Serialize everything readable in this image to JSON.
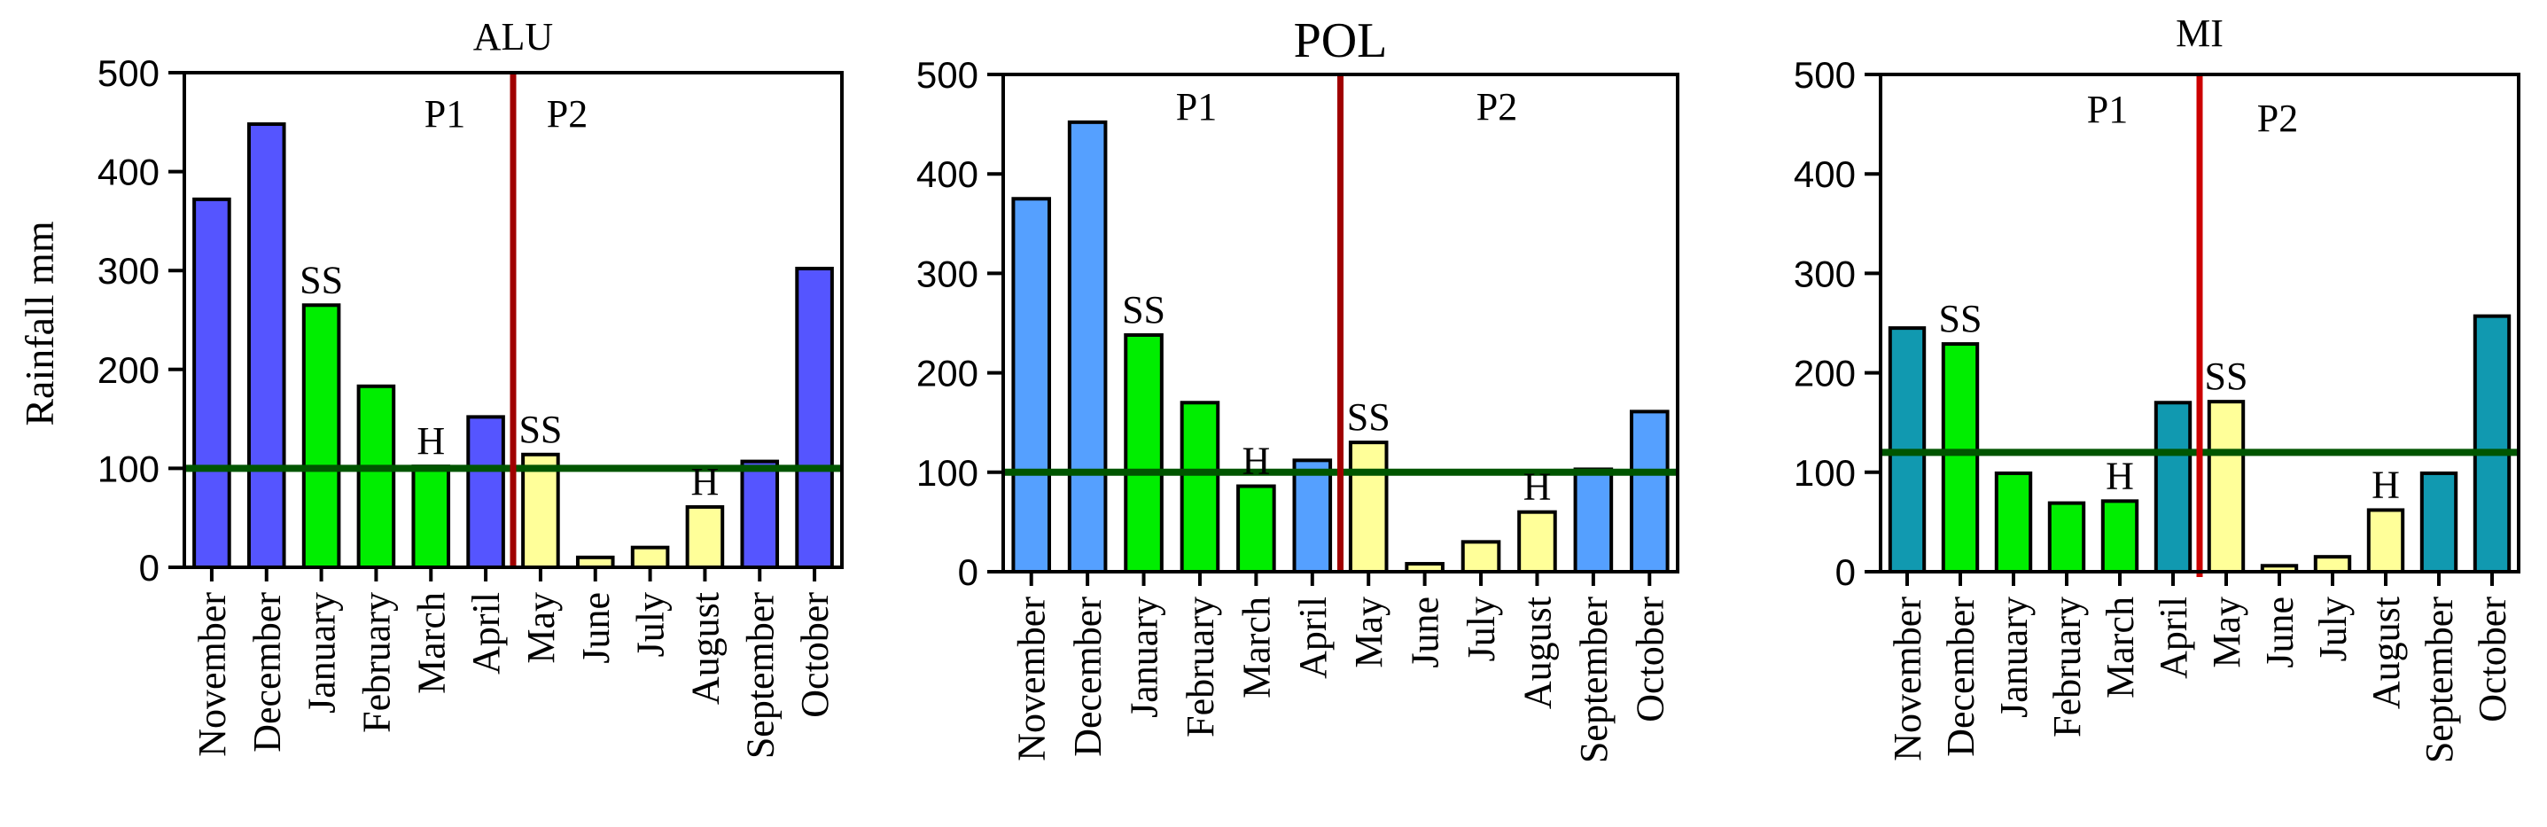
{
  "y_axis_label": "Rainfall mm",
  "period_labels": [
    "P1",
    "P2"
  ],
  "chart_data": [
    {
      "type": "bar",
      "title": "ALU",
      "ylabel": "Rainfall mm",
      "ylim": [
        0,
        500
      ],
      "yticks": [
        0,
        100,
        200,
        300,
        400,
        500
      ],
      "categories": [
        "November",
        "December",
        "January",
        "February",
        "March",
        "April",
        "May",
        "June",
        "July",
        "August",
        "September",
        "October"
      ],
      "values": [
        372,
        448,
        265,
        183,
        102,
        152,
        114,
        10,
        20,
        61,
        107,
        302
      ],
      "bar_colors": [
        "#5555ff",
        "#5555ff",
        "#00ee00",
        "#00ee00",
        "#00ee00",
        "#5555ff",
        "#ffff99",
        "#ffff99",
        "#ffff99",
        "#ffff99",
        "#5555ff",
        "#5555ff"
      ],
      "threshold": 100,
      "threshold_color": "#005500",
      "divider_color": "#a00000",
      "divider_between": [
        "April",
        "May"
      ],
      "annotations": [
        {
          "category": "January",
          "text": "SS"
        },
        {
          "category": "March",
          "text": "H"
        },
        {
          "category": "May",
          "text": "SS"
        },
        {
          "category": "August",
          "text": "H"
        }
      ]
    },
    {
      "type": "bar",
      "title": "POL",
      "ylim": [
        0,
        500
      ],
      "yticks": [
        0,
        100,
        200,
        300,
        400,
        500
      ],
      "categories": [
        "November",
        "December",
        "January",
        "February",
        "March",
        "April",
        "May",
        "June",
        "July",
        "August",
        "September",
        "October"
      ],
      "values": [
        375,
        452,
        238,
        170,
        86,
        112,
        130,
        8,
        30,
        60,
        103,
        161
      ],
      "bar_colors": [
        "#55a0ff",
        "#55a0ff",
        "#00ee00",
        "#00ee00",
        "#00ee00",
        "#55a0ff",
        "#ffff99",
        "#ffff99",
        "#ffff99",
        "#ffff99",
        "#55a0ff",
        "#55a0ff"
      ],
      "threshold": 100,
      "threshold_color": "#005500",
      "divider_color": "#a00000",
      "divider_between": [
        "April",
        "May"
      ],
      "annotations": [
        {
          "category": "January",
          "text": "SS"
        },
        {
          "category": "March",
          "text": "H"
        },
        {
          "category": "May",
          "text": "SS"
        },
        {
          "category": "August",
          "text": "H"
        }
      ]
    },
    {
      "type": "bar",
      "title": "MI",
      "ylim": [
        0,
        500
      ],
      "yticks": [
        0,
        100,
        200,
        300,
        400,
        500
      ],
      "categories": [
        "November",
        "December",
        "January",
        "February",
        "March",
        "April",
        "May",
        "June",
        "July",
        "August",
        "September",
        "October"
      ],
      "values": [
        245,
        229,
        99,
        69,
        71,
        170,
        171,
        6,
        15,
        62,
        99,
        257
      ],
      "bar_colors": [
        "#1199b0",
        "#00ee00",
        "#00ee00",
        "#00ee00",
        "#00ee00",
        "#1199b0",
        "#ffff99",
        "#ffff99",
        "#ffff99",
        "#ffff99",
        "#1199b0",
        "#1199b0"
      ],
      "threshold": 120,
      "threshold_color": "#005500",
      "divider_color": "#cc0000",
      "divider_between": [
        "April",
        "May"
      ],
      "annotations": [
        {
          "category": "December",
          "text": "SS"
        },
        {
          "category": "March",
          "text": "H"
        },
        {
          "category": "May",
          "text": "SS"
        },
        {
          "category": "August",
          "text": "H"
        }
      ]
    }
  ]
}
